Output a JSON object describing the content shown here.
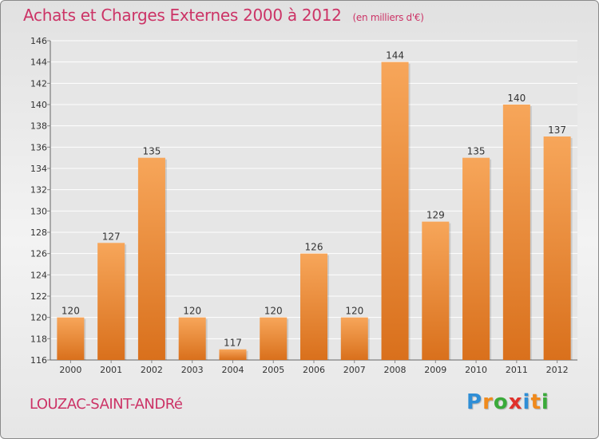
{
  "header": {
    "title": "Achats et Charges Externes 2000 à 2012",
    "unit": "(en milliers d'€)"
  },
  "location": "LOUZAC-SAINT-ANDRé",
  "logo": {
    "text": "Proxiti",
    "letter_colors": [
      "#2f8ed6",
      "#f08a1c",
      "#3aaa3a",
      "#e0312b",
      "#2f8ed6",
      "#f08a1c",
      "#3aaa3a"
    ]
  },
  "colors": {
    "title": "#cc3366",
    "bar_top": "#f7a65a",
    "bar_bottom": "#d9701c",
    "grid": "#ffffff",
    "axis_text": "#333333"
  },
  "chart_data": {
    "type": "bar",
    "title": "Achats et Charges Externes 2000 à 2012",
    "categories": [
      "2000",
      "2001",
      "2002",
      "2003",
      "2004",
      "2005",
      "2006",
      "2007",
      "2008",
      "2009",
      "2010",
      "2011",
      "2012"
    ],
    "values": [
      120,
      127,
      135,
      120,
      117,
      120,
      126,
      120,
      144,
      129,
      135,
      140,
      137
    ],
    "ylim": [
      116,
      146
    ],
    "yticks": [
      116,
      118,
      120,
      122,
      124,
      126,
      128,
      130,
      132,
      134,
      136,
      138,
      140,
      142,
      144,
      146
    ],
    "xlabel": "",
    "ylabel": "",
    "grid": true,
    "data_labels": true
  }
}
